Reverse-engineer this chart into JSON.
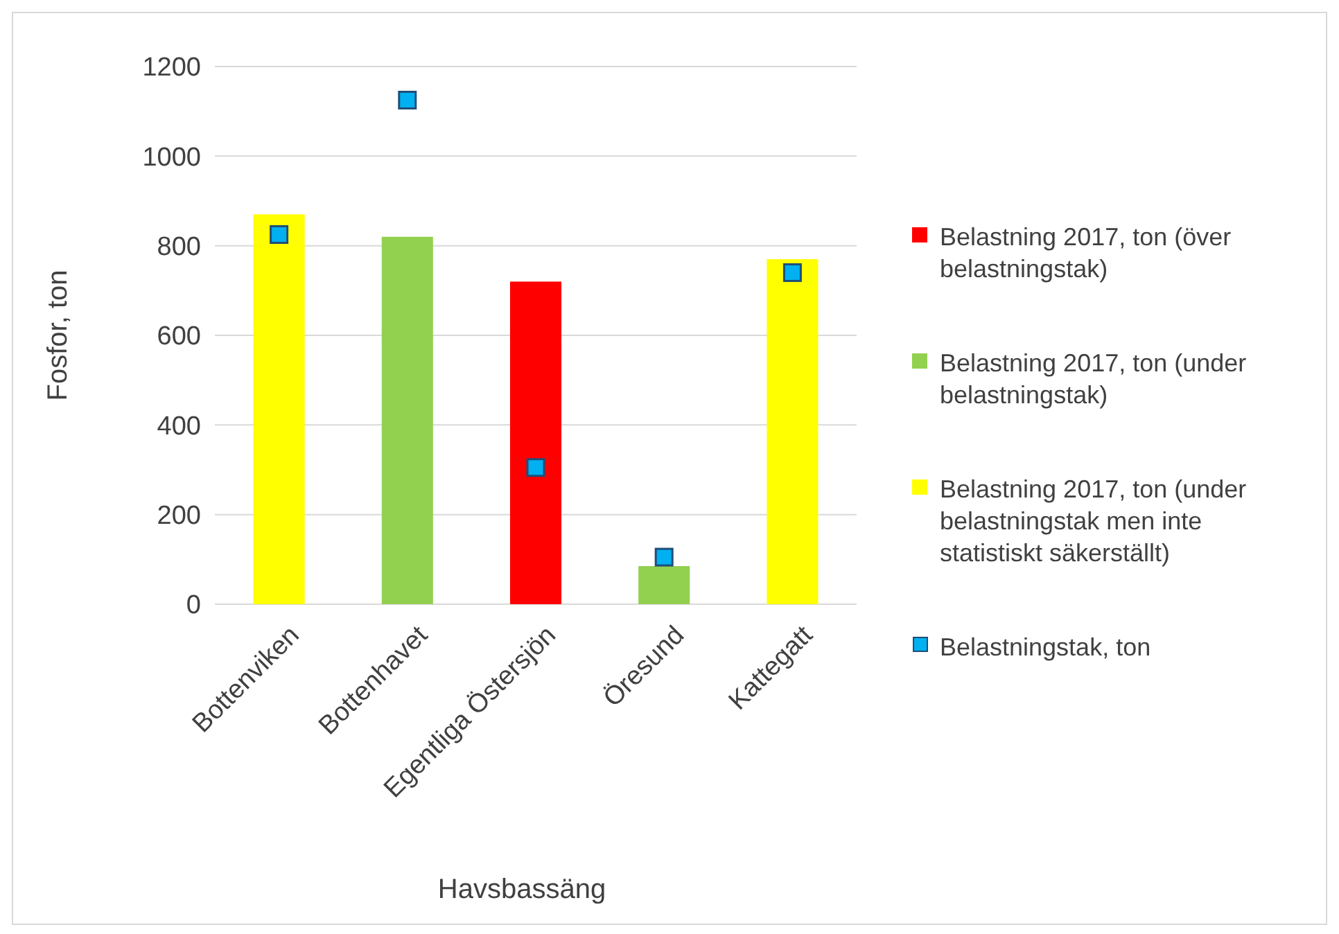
{
  "chart_data": {
    "type": "bar",
    "xlabel": "Havsbassäng",
    "ylabel": "Fosfor, ton",
    "categories": [
      "Bottenviken",
      "Bottenhavet",
      "Egentliga Östersjön",
      "Öresund",
      "Kattegatt"
    ],
    "series": [
      {
        "name": "Belastning 2017, ton (över belastningstak)",
        "color": "#ff0000",
        "values": [
          null,
          null,
          720,
          null,
          null
        ]
      },
      {
        "name": "Belastning 2017, ton (under belastningstak)",
        "color": "#92d050",
        "values": [
          null,
          820,
          null,
          85,
          null
        ]
      },
      {
        "name": "Belastning 2017, ton (under belastningstak men inte statistiskt säkerställt)",
        "color": "#ffff00",
        "values": [
          870,
          null,
          null,
          null,
          770
        ]
      },
      {
        "name": "Belastningstak, ton",
        "type": "scatter",
        "marker": "square",
        "color": "#00b0f0",
        "values": [
          825,
          1125,
          305,
          105,
          740
        ]
      }
    ],
    "ylim": [
      0,
      1200
    ],
    "yticks": [
      0,
      200,
      400,
      600,
      800,
      1000,
      1200
    ],
    "grid": "y",
    "legend": "right"
  }
}
